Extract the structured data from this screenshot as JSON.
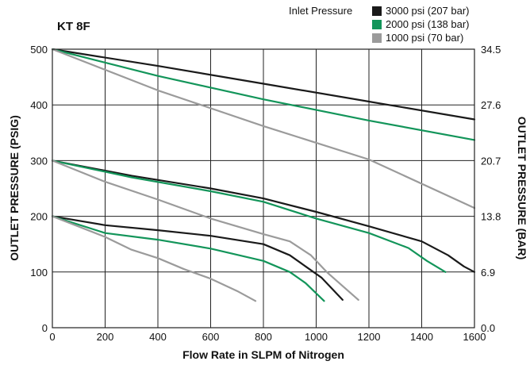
{
  "chart_data": {
    "type": "line",
    "title": "KT 8F",
    "xlabel": "Flow Rate in SLPM of Nitrogen",
    "ylabel": "OUTLET PRESSURE (PSIG)",
    "ylabel_right": "OUTLET PRESSURE (BAR)",
    "xlim": [
      0,
      1600
    ],
    "ylim": [
      0,
      500
    ],
    "x_ticks": [
      "0",
      "200",
      "400",
      "600",
      "800",
      "1000",
      "1200",
      "1400",
      "1600"
    ],
    "y_ticks": [
      "0",
      "100",
      "200",
      "300",
      "400",
      "500"
    ],
    "y_right_ticks": [
      {
        "psi": 0,
        "label": "0.0"
      },
      {
        "psi": 100,
        "label": "6.9"
      },
      {
        "psi": 200,
        "label": "13.8"
      },
      {
        "psi": 300,
        "label": "20.7"
      },
      {
        "psi": 400,
        "label": "27.6"
      },
      {
        "psi": 500,
        "label": "34.5"
      }
    ],
    "grid": true,
    "legend_title": "Inlet Pressure",
    "legend_position": "top-right",
    "legend": [
      {
        "label": "3000 psi (207 bar)",
        "color": "#1a1a1a"
      },
      {
        "label": "2000 psi (138 bar)",
        "color": "#13955a"
      },
      {
        "label": "1000 psi (70 bar)",
        "color": "#9b9b9b"
      }
    ],
    "series": [
      {
        "color": "#1a1a1a",
        "points": [
          [
            0,
            500
          ],
          [
            400,
            470
          ],
          [
            800,
            438
          ],
          [
            1200,
            406
          ],
          [
            1600,
            374
          ]
        ]
      },
      {
        "color": "#13955a",
        "points": [
          [
            0,
            500
          ],
          [
            400,
            452
          ],
          [
            800,
            410
          ],
          [
            1200,
            372
          ],
          [
            1600,
            337
          ]
        ]
      },
      {
        "color": "#9b9b9b",
        "points": [
          [
            0,
            500
          ],
          [
            400,
            426
          ],
          [
            800,
            362
          ],
          [
            1200,
            302
          ],
          [
            1600,
            215
          ]
        ]
      },
      {
        "color": "#1a1a1a",
        "points": [
          [
            0,
            300
          ],
          [
            300,
            273
          ],
          [
            600,
            250
          ],
          [
            800,
            232
          ],
          [
            1000,
            208
          ],
          [
            1200,
            182
          ],
          [
            1400,
            155
          ],
          [
            1500,
            130
          ],
          [
            1560,
            110
          ],
          [
            1600,
            100
          ]
        ]
      },
      {
        "color": "#13955a",
        "points": [
          [
            0,
            300
          ],
          [
            300,
            270
          ],
          [
            600,
            245
          ],
          [
            800,
            226
          ],
          [
            1000,
            196
          ],
          [
            1200,
            170
          ],
          [
            1350,
            143
          ],
          [
            1420,
            120
          ],
          [
            1490,
            100
          ]
        ]
      },
      {
        "color": "#9b9b9b",
        "points": [
          [
            0,
            300
          ],
          [
            200,
            262
          ],
          [
            400,
            230
          ],
          [
            600,
            196
          ],
          [
            800,
            168
          ],
          [
            900,
            155
          ],
          [
            980,
            130
          ],
          [
            1040,
            100
          ],
          [
            1100,
            75
          ],
          [
            1160,
            50
          ]
        ]
      },
      {
        "color": "#1a1a1a",
        "points": [
          [
            0,
            200
          ],
          [
            200,
            184
          ],
          [
            400,
            175
          ],
          [
            600,
            165
          ],
          [
            800,
            150
          ],
          [
            900,
            130
          ],
          [
            960,
            110
          ],
          [
            1020,
            90
          ],
          [
            1100,
            50
          ]
        ]
      },
      {
        "color": "#13955a",
        "points": [
          [
            0,
            200
          ],
          [
            200,
            170
          ],
          [
            400,
            158
          ],
          [
            600,
            142
          ],
          [
            800,
            120
          ],
          [
            900,
            100
          ],
          [
            960,
            80
          ],
          [
            1030,
            48
          ]
        ]
      },
      {
        "color": "#9b9b9b",
        "points": [
          [
            0,
            200
          ],
          [
            200,
            163
          ],
          [
            300,
            140
          ],
          [
            400,
            125
          ],
          [
            500,
            105
          ],
          [
            600,
            88
          ],
          [
            700,
            66
          ],
          [
            770,
            48
          ]
        ]
      }
    ]
  }
}
